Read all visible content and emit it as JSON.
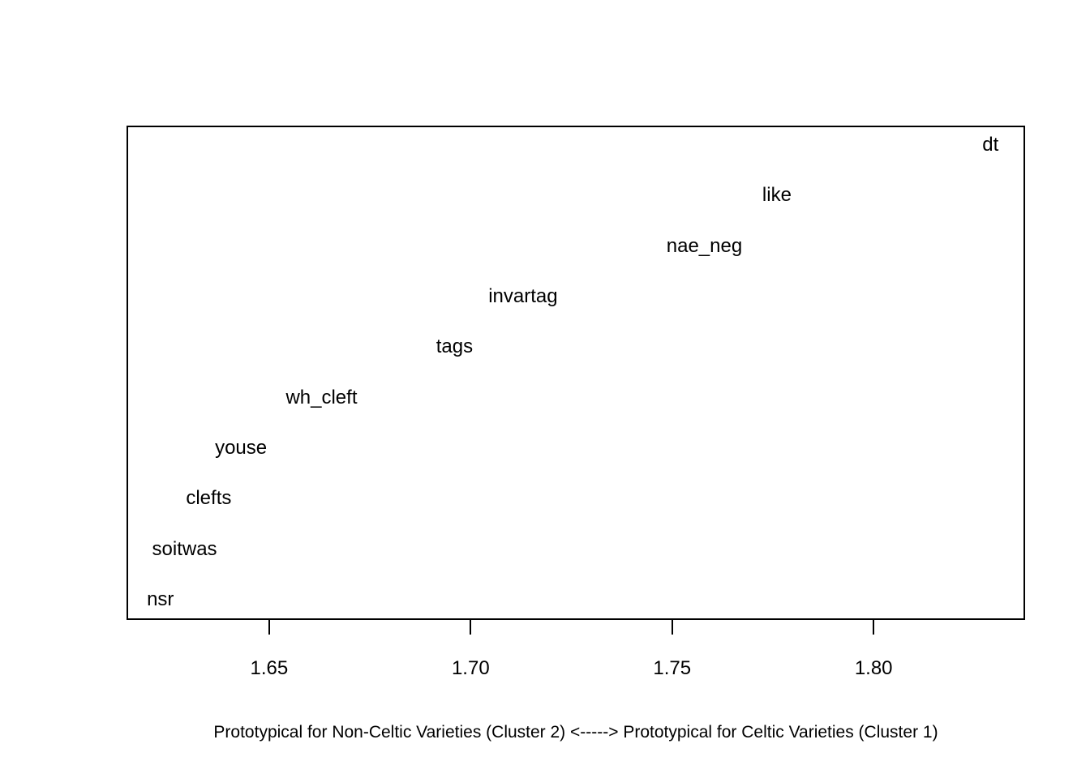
{
  "chart_data": {
    "type": "scatter",
    "title": "",
    "xlabel": "Prototypical for Non-Celtic Varieties (Cluster 2) <-----> Prototypical for Celtic Varieties (Cluster 1)",
    "ylabel": "",
    "point_style": "text-labels",
    "xlim": [
      1.6148,
      1.8374
    ],
    "ylim": [
      0.63,
      10.37
    ],
    "x_ticks": [
      {
        "value": 1.65,
        "label": "1.65"
      },
      {
        "value": 1.7,
        "label": "1.70"
      },
      {
        "value": 1.75,
        "label": "1.75"
      },
      {
        "value": 1.8,
        "label": "1.80"
      }
    ],
    "grid": false,
    "legend": "none",
    "points": [
      {
        "label": "nsr",
        "x": 1.623,
        "y": 1
      },
      {
        "label": "soitwas",
        "x": 1.629,
        "y": 2
      },
      {
        "label": "clefts",
        "x": 1.635,
        "y": 3
      },
      {
        "label": "youse",
        "x": 1.643,
        "y": 4
      },
      {
        "label": "wh_cleft",
        "x": 1.663,
        "y": 5
      },
      {
        "label": "tags",
        "x": 1.696,
        "y": 6
      },
      {
        "label": "invartag",
        "x": 1.713,
        "y": 7
      },
      {
        "label": "nae_neg",
        "x": 1.758,
        "y": 8
      },
      {
        "label": "like",
        "x": 1.776,
        "y": 9
      },
      {
        "label": "dt",
        "x": 1.829,
        "y": 10
      }
    ],
    "colors": {
      "text": "#000000",
      "box_border": "#000000",
      "background": "#ffffff"
    }
  }
}
